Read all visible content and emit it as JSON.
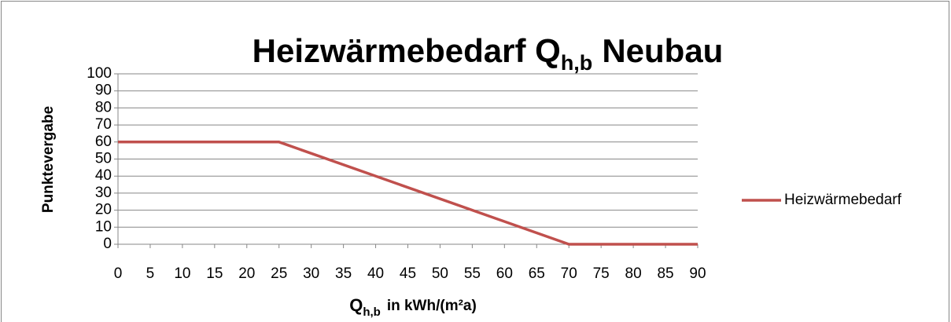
{
  "chart_data": {
    "type": "line",
    "title": [
      "Heizwärmebedarf Q",
      "h,b",
      "Neubau"
    ],
    "x_label": [
      "Q",
      "h,b",
      "in kWh/(m²a)"
    ],
    "y_label": "Punktevergabe",
    "x": [
      0,
      25,
      70,
      90
    ],
    "series": [
      {
        "name": "Heizwärmebedarf",
        "color": "#c0504d",
        "values": [
          60,
          60,
          0,
          0
        ]
      }
    ],
    "xlim": [
      0,
      90
    ],
    "xticks": [
      0,
      5,
      10,
      15,
      20,
      25,
      30,
      35,
      40,
      45,
      50,
      55,
      60,
      65,
      70,
      75,
      80,
      85,
      90
    ],
    "ylim": [
      0,
      100
    ],
    "yticks": [
      0,
      10,
      20,
      30,
      40,
      50,
      60,
      70,
      80,
      90,
      100
    ],
    "grid": true,
    "legend": "right"
  }
}
